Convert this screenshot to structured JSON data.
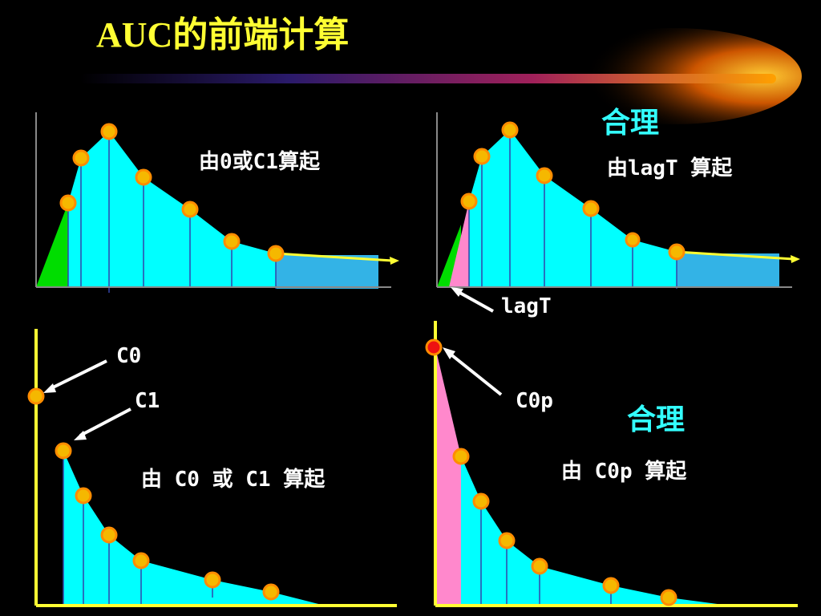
{
  "title": "AUC的前端计算",
  "panels": [
    {
      "label": "由0或C1算起"
    },
    {
      "note": "合理",
      "label": "由lagT 算起",
      "arrow_label": "lagT"
    },
    {
      "label": "由 C0 或 C1 算起",
      "arrow_labels": [
        "C0",
        "C1"
      ]
    },
    {
      "note": "合理",
      "label": "由 C0p 算起",
      "arrow_label": "C0p"
    }
  ]
}
